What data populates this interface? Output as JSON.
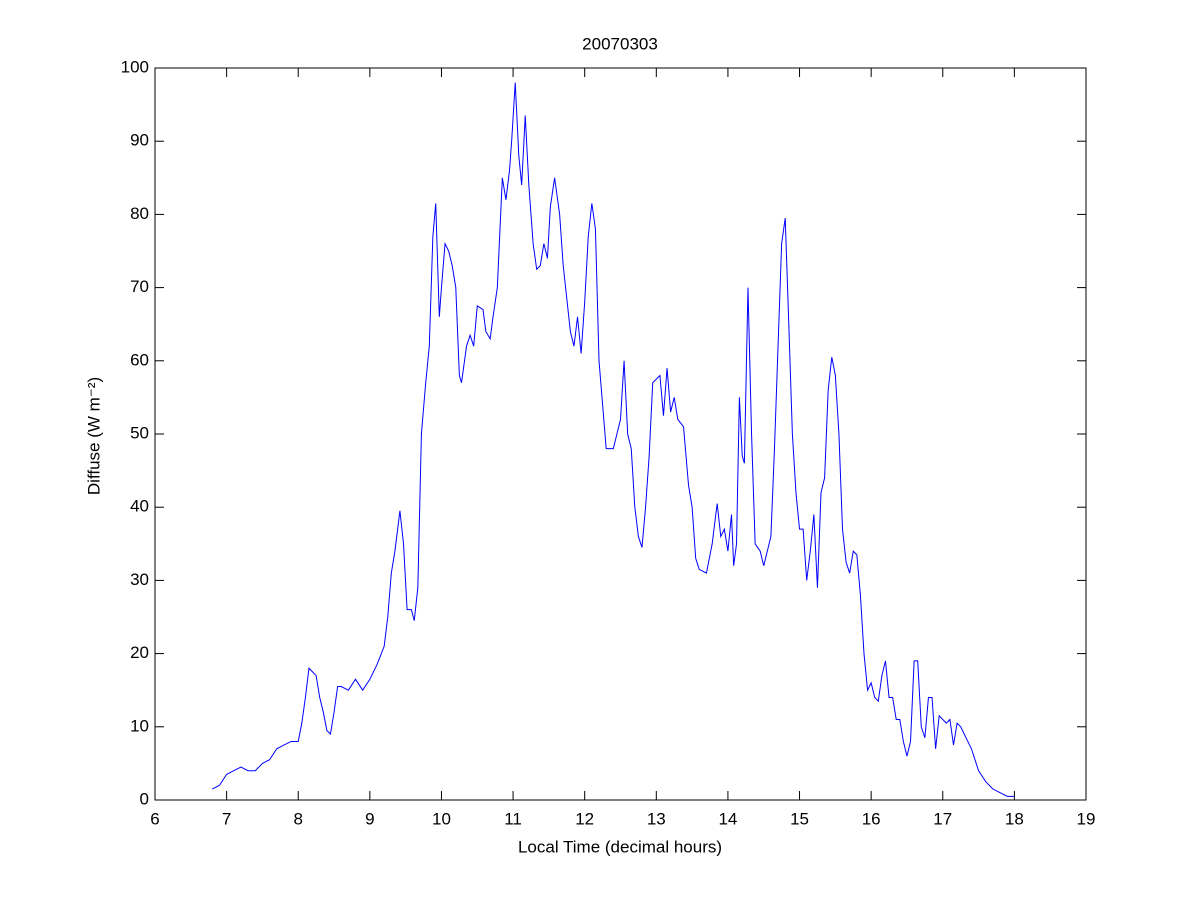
{
  "chart_data": {
    "type": "line",
    "title": "20070303",
    "xlabel": "Local Time (decimal hours)",
    "ylabel": "Diffuse (W m⁻²)",
    "color": "#0000ff",
    "xlim": [
      6,
      19
    ],
    "xticks": [
      6,
      7,
      8,
      9,
      10,
      11,
      12,
      13,
      14,
      15,
      16,
      17,
      18,
      19
    ],
    "ylim": [
      0,
      100
    ],
    "yticks": [
      0,
      10,
      20,
      30,
      40,
      50,
      60,
      70,
      80,
      90,
      100
    ],
    "x": [
      6.8,
      6.9,
      7.0,
      7.1,
      7.2,
      7.3,
      7.4,
      7.5,
      7.6,
      7.7,
      7.8,
      7.9,
      8.0,
      8.05,
      8.1,
      8.15,
      8.2,
      8.25,
      8.3,
      8.35,
      8.4,
      8.45,
      8.5,
      8.55,
      8.6,
      8.7,
      8.8,
      8.9,
      9.0,
      9.1,
      9.2,
      9.25,
      9.3,
      9.35,
      9.42,
      9.47,
      9.52,
      9.58,
      9.62,
      9.67,
      9.72,
      9.78,
      9.83,
      9.88,
      9.92,
      9.97,
      10.0,
      10.05,
      10.1,
      10.15,
      10.2,
      10.25,
      10.28,
      10.35,
      10.4,
      10.45,
      10.5,
      10.58,
      10.62,
      10.68,
      10.72,
      10.78,
      10.85,
      10.9,
      10.95,
      10.98,
      11.03,
      11.08,
      11.12,
      11.17,
      11.22,
      11.28,
      11.33,
      11.38,
      11.43,
      11.48,
      11.52,
      11.58,
      11.65,
      11.7,
      11.8,
      11.85,
      11.9,
      11.95,
      12.0,
      12.05,
      12.1,
      12.15,
      12.2,
      12.3,
      12.4,
      12.5,
      12.55,
      12.6,
      12.65,
      12.7,
      12.75,
      12.8,
      12.85,
      12.9,
      12.95,
      13.0,
      13.05,
      13.1,
      13.15,
      13.2,
      13.25,
      13.3,
      13.38,
      13.45,
      13.5,
      13.55,
      13.6,
      13.7,
      13.78,
      13.85,
      13.9,
      13.95,
      14.0,
      14.05,
      14.08,
      14.12,
      14.16,
      14.2,
      14.23,
      14.28,
      14.33,
      14.38,
      14.45,
      14.5,
      14.6,
      14.65,
      14.7,
      14.75,
      14.8,
      14.85,
      14.9,
      14.95,
      15.0,
      15.05,
      15.1,
      15.15,
      15.2,
      15.25,
      15.3,
      15.35,
      15.4,
      15.45,
      15.5,
      15.55,
      15.6,
      15.65,
      15.7,
      15.75,
      15.8,
      15.85,
      15.9,
      15.95,
      16.0,
      16.05,
      16.1,
      16.15,
      16.2,
      16.25,
      16.3,
      16.35,
      16.4,
      16.45,
      16.5,
      16.55,
      16.6,
      16.65,
      16.7,
      16.75,
      16.8,
      16.85,
      16.9,
      16.95,
      17.0,
      17.05,
      17.1,
      17.15,
      17.2,
      17.25,
      17.3,
      17.35,
      17.4,
      17.5,
      17.6,
      17.7,
      17.8,
      17.9,
      18.0
    ],
    "values": [
      1.5,
      2,
      3.5,
      4,
      4.5,
      4,
      4,
      5,
      5.5,
      7,
      7.5,
      8,
      8,
      10.5,
      14,
      18,
      17.5,
      17,
      14,
      12,
      9.5,
      9,
      12,
      15.5,
      15.5,
      15,
      16.5,
      15,
      16.5,
      18.5,
      21,
      25,
      31,
      34,
      39.5,
      35,
      26,
      26,
      24.5,
      29,
      50,
      57,
      62,
      77,
      81.5,
      66,
      70,
      76,
      75,
      73,
      70,
      58,
      57,
      62,
      63.5,
      62,
      67.5,
      67,
      64,
      63,
      66,
      70,
      85,
      82,
      86,
      90,
      98,
      88,
      84,
      93.5,
      84,
      76,
      72.5,
      73,
      76,
      74,
      81,
      85,
      80,
      73,
      64,
      62,
      66,
      61,
      68,
      77,
      81.5,
      78,
      60,
      48,
      48,
      52,
      60,
      50,
      48,
      40,
      36,
      34.5,
      40,
      47,
      57,
      57.5,
      58,
      52.5,
      59,
      53,
      55,
      52,
      51,
      43,
      40,
      33,
      31.5,
      31,
      35,
      40.5,
      36,
      37,
      34,
      39,
      32,
      35,
      55,
      47,
      46,
      70,
      50,
      35,
      34,
      32,
      36,
      48,
      62,
      76,
      79.5,
      65,
      50,
      42,
      37,
      37,
      30,
      34,
      39,
      29,
      42,
      44,
      56,
      60.5,
      58,
      50,
      37,
      32.5,
      31,
      34,
      33.5,
      28,
      20,
      15,
      16,
      14,
      13.5,
      17,
      19,
      14,
      14,
      11,
      11,
      8,
      6,
      8,
      19,
      19,
      10,
      8.5,
      14,
      14,
      7,
      11.5,
      11,
      10.5,
      11,
      7.5,
      10.5,
      10,
      9,
      8,
      7,
      4,
      2.5,
      1.5,
      1,
      0.5,
      0.5
    ]
  }
}
